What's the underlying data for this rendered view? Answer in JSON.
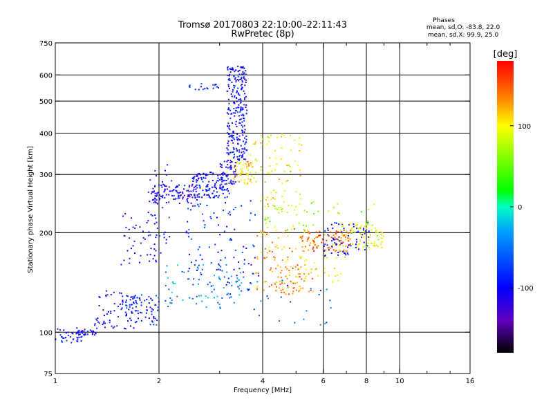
{
  "chart_data": {
    "type": "scatter",
    "title": "Tromsø 20170803 22:10:00–22:11:43",
    "subtitle": "RwPretec (8p)",
    "xlabel": "Frequency [MHz]",
    "ylabel": "Stationary phase Virtual Height [km]",
    "x_scale": "log",
    "y_scale": "log",
    "xlim": [
      1,
      16
    ],
    "ylim": [
      75,
      750
    ],
    "x_ticks": [
      1,
      2,
      4,
      6,
      8,
      10,
      16
    ],
    "x_tick_labels": [
      "1",
      "2",
      "4",
      "6",
      "8",
      "10",
      "16"
    ],
    "x_minor_ticks": [
      3,
      5,
      7,
      9,
      12,
      14
    ],
    "x_grid": [
      2,
      4,
      6,
      8,
      10
    ],
    "y_ticks": [
      75,
      100,
      200,
      300,
      400,
      500,
      600,
      750
    ],
    "y_tick_labels": [
      "75",
      "100",
      "200",
      "300",
      "400",
      "500",
      "600",
      "750"
    ],
    "y_grid": [
      100,
      200,
      300,
      400,
      500,
      600
    ],
    "grid": true,
    "legend": {
      "title": "Phases",
      "lines": [
        "mean, sd,O: -83.8, 22.0",
        "mean, sd,X:  99.9, 25.0"
      ],
      "placement": "top-right"
    },
    "colorbar": {
      "label": "[deg]",
      "range": [
        -180,
        180
      ],
      "ticks": [
        100,
        0,
        -100
      ],
      "tick_labels": [
        "100",
        "0",
        "-100"
      ],
      "stops": [
        {
          "v": 180,
          "color": "#ff0000"
        },
        {
          "v": 135,
          "color": "#ff8000"
        },
        {
          "v": 100,
          "color": "#ffff00"
        },
        {
          "v": 20,
          "color": "#00ff00"
        },
        {
          "v": 0,
          "color": "#00ffc0"
        },
        {
          "v": -30,
          "color": "#00a0ff"
        },
        {
          "v": -100,
          "color": "#0000ff"
        },
        {
          "v": -140,
          "color": "#6000c0"
        },
        {
          "v": -180,
          "color": "#000000"
        }
      ]
    },
    "clusters": [
      {
        "f": [
          1.0,
          1.2
        ],
        "h": [
          92,
          103
        ],
        "phase": -95,
        "n": 40
      },
      {
        "f": [
          1.15,
          1.35
        ],
        "h": [
          98,
          102
        ],
        "phase": -110,
        "n": 25
      },
      {
        "f": [
          1.3,
          1.7
        ],
        "h": [
          102,
          135
        ],
        "phase": -100,
        "n": 70
      },
      {
        "f": [
          1.6,
          2.0
        ],
        "h": [
          105,
          130
        ],
        "phase": -90,
        "n": 70
      },
      {
        "f": [
          1.55,
          2.0
        ],
        "h": [
          160,
          235
        ],
        "phase": -105,
        "n": 45
      },
      {
        "f": [
          1.85,
          2.2
        ],
        "h": [
          170,
          330
        ],
        "phase": -95,
        "n": 35
      },
      {
        "f": [
          1.9,
          2.6
        ],
        "h": [
          245,
          280
        ],
        "phase": -110,
        "n": 110
      },
      {
        "f": [
          2.5,
          3.2
        ],
        "h": [
          255,
          305
        ],
        "phase": -95,
        "n": 130
      },
      {
        "f": [
          3.0,
          3.35
        ],
        "h": [
          280,
          330
        ],
        "phase": -105,
        "n": 50
      },
      {
        "f": [
          3.15,
          3.6
        ],
        "h": [
          330,
          640
        ],
        "phase": -100,
        "n": 260
      },
      {
        "f": [
          2.4,
          3.0
        ],
        "h": [
          530,
          565
        ],
        "phase": -80,
        "n": 18
      },
      {
        "f": [
          3.3,
          3.75
        ],
        "h": [
          280,
          330
        ],
        "phase": 110,
        "n": 50
      },
      {
        "f": [
          3.6,
          5.2
        ],
        "h": [
          230,
          400
        ],
        "phase": 100,
        "n": 90
      },
      {
        "f": [
          2.4,
          3.9
        ],
        "h": [
          130,
          250
        ],
        "phase": -85,
        "n": 110
      },
      {
        "f": [
          2.0,
          3.5
        ],
        "h": [
          118,
          160
        ],
        "phase": -40,
        "n": 70
      },
      {
        "f": [
          3.8,
          5.2
        ],
        "h": [
          130,
          210
        ],
        "phase": 125,
        "n": 90
      },
      {
        "f": [
          4.3,
          5.6
        ],
        "h": [
          130,
          160
        ],
        "phase": 140,
        "n": 40
      },
      {
        "f": [
          5.2,
          7.2
        ],
        "h": [
          175,
          205
        ],
        "phase": 140,
        "n": 110
      },
      {
        "f": [
          6.0,
          8.2
        ],
        "h": [
          170,
          215
        ],
        "phase": -100,
        "n": 70
      },
      {
        "f": [
          6.8,
          9.0
        ],
        "h": [
          180,
          215
        ],
        "phase": 90,
        "n": 70
      },
      {
        "f": [
          4.0,
          8.5
        ],
        "h": [
          200,
          250
        ],
        "phase": 60,
        "n": 40
      },
      {
        "f": [
          5.0,
          7.0
        ],
        "h": [
          140,
          170
        ],
        "phase": 100,
        "n": 30
      },
      {
        "f": [
          3.5,
          6.5
        ],
        "h": [
          105,
          145
        ],
        "phase": -60,
        "n": 25
      }
    ]
  }
}
